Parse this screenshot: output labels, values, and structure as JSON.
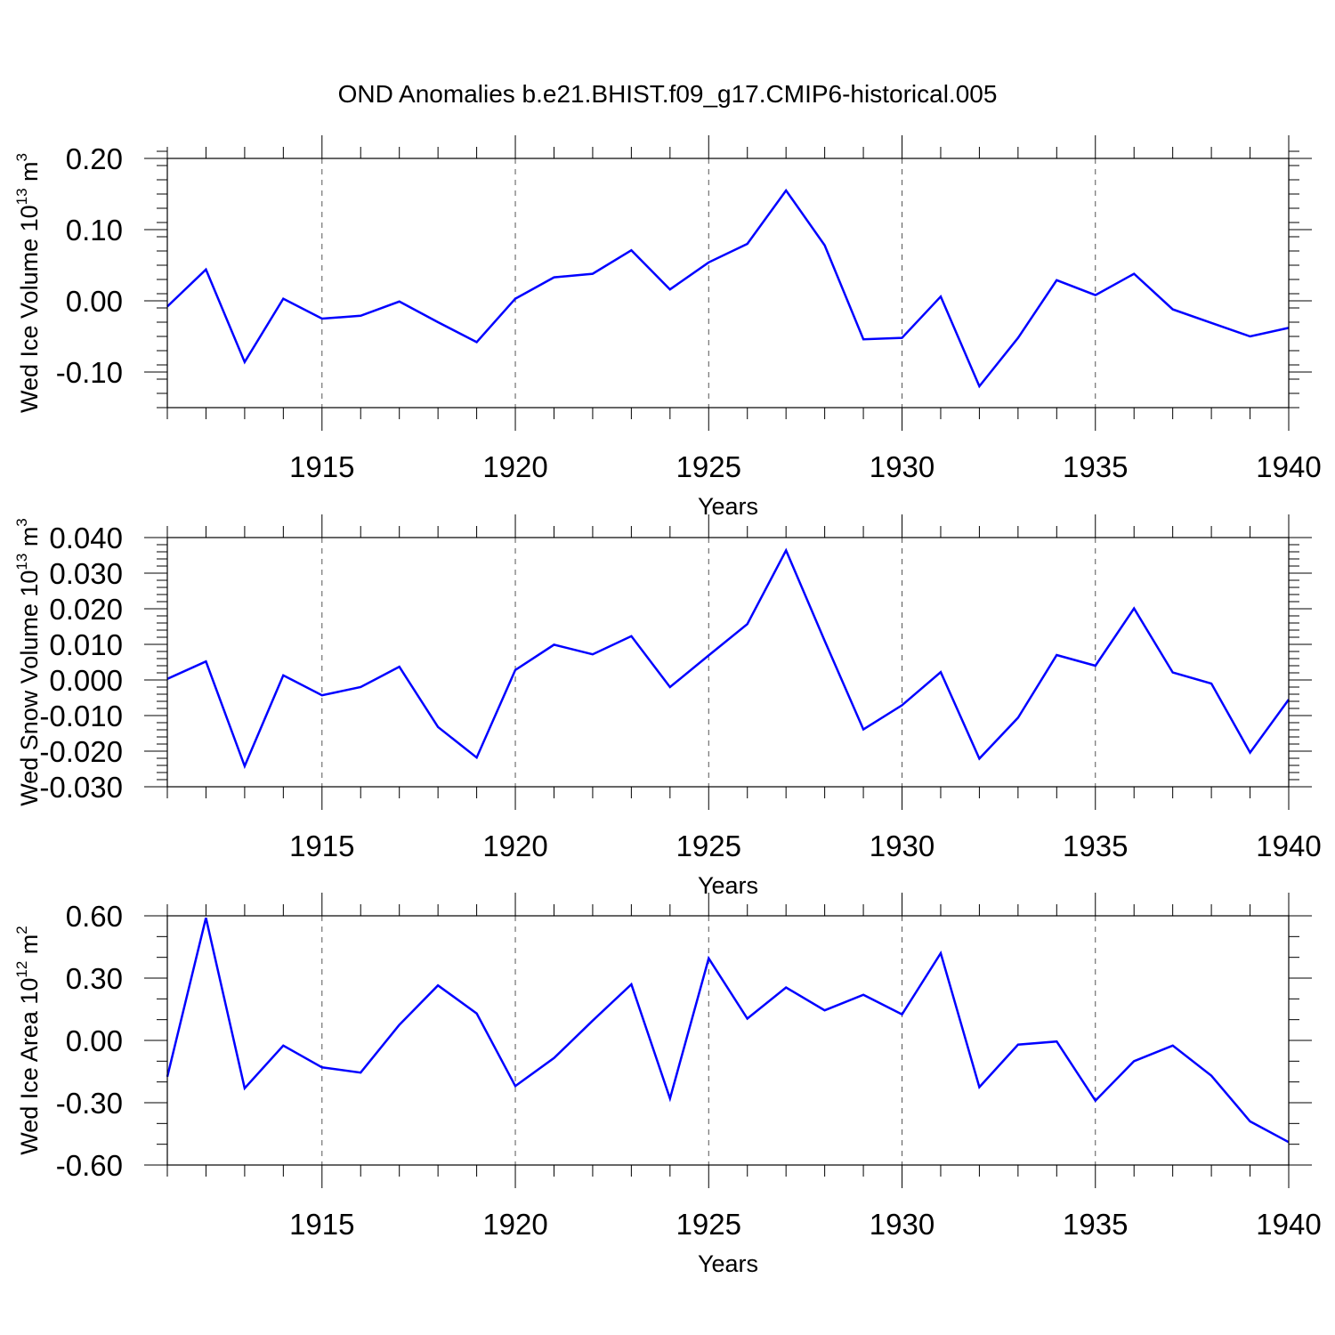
{
  "figure": {
    "title": "OND Anomalies b.e21.BHIST.f09_g17.CMIP6-historical.005"
  },
  "style": {
    "line_color": "#0000ff",
    "axis_color": "#000000",
    "grid_color": "#555555"
  },
  "chart_data": [
    {
      "type": "line",
      "ylabel": {
        "text": "Wed Ice Volume 10",
        "exponent": "13",
        "unit": " m",
        "unit_exponent": "3"
      },
      "xlabel": "Years",
      "xlim": [
        1911,
        1940
      ],
      "ylim": [
        -0.15,
        0.2
      ],
      "yticks": [
        -0.1,
        0.0,
        0.1,
        0.2
      ],
      "yminor": 0.02,
      "ytick_labels": [
        "-0.10",
        "0.00",
        "0.10",
        "0.20"
      ],
      "xticks": [
        1915,
        1920,
        1925,
        1930,
        1935,
        1940
      ],
      "xtick_labels": [
        "1915",
        "1920",
        "1925",
        "1930",
        "1935",
        "1940"
      ],
      "grid": "vertical-dashed-at-major-x",
      "series": [
        {
          "name": "Wed Ice Volume",
          "x": [
            1911,
            1912,
            1913,
            1914,
            1915,
            1916,
            1917,
            1918,
            1919,
            1920,
            1921,
            1922,
            1923,
            1924,
            1925,
            1926,
            1927,
            1928,
            1929,
            1930,
            1931,
            1932,
            1933,
            1934,
            1935,
            1936,
            1937,
            1938,
            1939,
            1940
          ],
          "values": [
            -0.008,
            0.044,
            -0.086,
            0.003,
            -0.025,
            -0.021,
            -0.001,
            -0.03,
            -0.058,
            0.003,
            0.033,
            0.038,
            0.071,
            0.016,
            0.054,
            0.08,
            0.155,
            0.078,
            -0.054,
            -0.052,
            0.006,
            -0.12,
            -0.052,
            0.029,
            0.008,
            0.038,
            -0.012,
            -0.031,
            -0.05,
            -0.038
          ]
        }
      ]
    },
    {
      "type": "line",
      "ylabel": {
        "text": "Wed Snow Volume 10",
        "exponent": "13",
        "unit": " m",
        "unit_exponent": "3"
      },
      "xlabel": "Years",
      "xlim": [
        1911,
        1940
      ],
      "ylim": [
        -0.03,
        0.04
      ],
      "yticks": [
        -0.03,
        -0.02,
        -0.01,
        0.0,
        0.01,
        0.02,
        0.03,
        0.04
      ],
      "yminor": 0.002,
      "ytick_labels": [
        "-0.030",
        "-0.020",
        "-0.010",
        "0.000",
        "0.010",
        "0.020",
        "0.030",
        "0.040"
      ],
      "xticks": [
        1915,
        1920,
        1925,
        1930,
        1935,
        1940
      ],
      "xtick_labels": [
        "1915",
        "1920",
        "1925",
        "1930",
        "1935",
        "1940"
      ],
      "grid": "vertical-dashed-at-major-x",
      "series": [
        {
          "name": "Wed Snow Volume",
          "x": [
            1911,
            1912,
            1913,
            1914,
            1915,
            1916,
            1917,
            1918,
            1919,
            1920,
            1921,
            1922,
            1923,
            1924,
            1925,
            1926,
            1927,
            1928,
            1929,
            1930,
            1931,
            1932,
            1933,
            1934,
            1935,
            1936,
            1937,
            1938,
            1939,
            1940
          ],
          "values": [
            0.0003,
            0.0052,
            -0.0242,
            0.0013,
            -0.0043,
            -0.002,
            0.0037,
            -0.0132,
            -0.0218,
            0.0028,
            0.0099,
            0.0072,
            0.0123,
            -0.002,
            0.0069,
            0.0157,
            0.0364,
            0.011,
            -0.0139,
            -0.0071,
            0.0022,
            -0.0221,
            -0.0106,
            0.007,
            0.004,
            0.0201,
            0.0021,
            -0.001,
            -0.0204,
            -0.0055
          ]
        }
      ]
    },
    {
      "type": "line",
      "ylabel": {
        "text": "Wed Ice Area 10",
        "exponent": "12",
        "unit": " m",
        "unit_exponent": "2"
      },
      "xlabel": "Years",
      "xlim": [
        1911,
        1940
      ],
      "ylim": [
        -0.6,
        0.6
      ],
      "yticks": [
        -0.6,
        -0.3,
        0.0,
        0.3,
        0.6
      ],
      "yminor": 0.1,
      "ytick_labels": [
        "-0.60",
        "-0.30",
        "0.00",
        "0.30",
        "0.60"
      ],
      "xticks": [
        1915,
        1920,
        1925,
        1930,
        1935,
        1940
      ],
      "xtick_labels": [
        "1915",
        "1920",
        "1925",
        "1930",
        "1935",
        "1940"
      ],
      "grid": "vertical-dashed-at-major-x",
      "series": [
        {
          "name": "Wed Ice Area",
          "x": [
            1911,
            1912,
            1913,
            1914,
            1915,
            1916,
            1917,
            1918,
            1919,
            1920,
            1921,
            1922,
            1923,
            1924,
            1925,
            1926,
            1927,
            1928,
            1929,
            1930,
            1931,
            1932,
            1933,
            1934,
            1935,
            1936,
            1937,
            1938,
            1939,
            1940
          ],
          "values": [
            -0.175,
            0.59,
            -0.23,
            -0.025,
            -0.13,
            -0.155,
            0.075,
            0.265,
            0.13,
            -0.22,
            -0.085,
            0.095,
            0.27,
            -0.28,
            0.395,
            0.105,
            0.255,
            0.145,
            0.22,
            0.125,
            0.42,
            -0.225,
            -0.02,
            -0.005,
            -0.29,
            -0.1,
            -0.025,
            -0.17,
            -0.39,
            -0.49
          ]
        }
      ]
    }
  ]
}
